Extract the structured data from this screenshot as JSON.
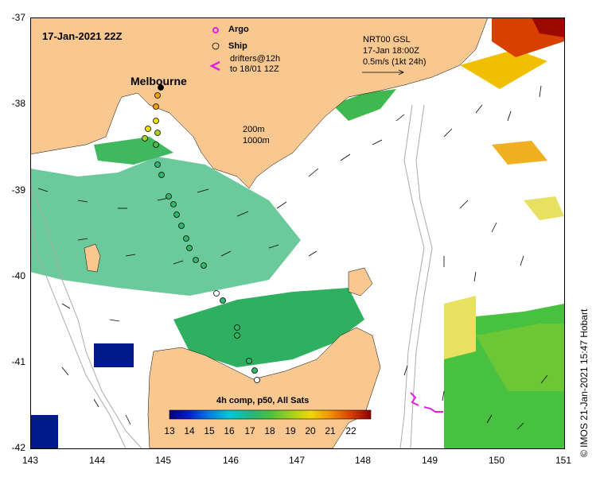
{
  "figure": {
    "date_label": "17-Jan-2021 22Z",
    "credit": "© IMOS 21-Jan-2021 15:47 Hobart"
  },
  "legend": {
    "argo": "Argo",
    "ship": "Ship",
    "drifters_line1": "drifters@12h",
    "drifters_line2": "to 18/01 12Z"
  },
  "current_key": {
    "line1": "NRT00 GSL",
    "line2": "17-Jan 18:00Z",
    "line3": "0.5m/s (1kt 24h)"
  },
  "isobaths": {
    "line1": "200m",
    "line2": "1000m"
  },
  "place_labels": {
    "melbourne": "Melbourne"
  },
  "axes": {
    "y_ticks": [
      "-37",
      "-38",
      "-39",
      "-40",
      "-41",
      "-42"
    ],
    "x_ticks": [
      "143",
      "144",
      "145",
      "146",
      "147",
      "148",
      "149",
      "150",
      "151"
    ]
  },
  "colorbar": {
    "title": "4h comp, p50, All Sats",
    "ticks": [
      "13",
      "14",
      "15",
      "16",
      "17",
      "18",
      "19",
      "20",
      "21",
      "22"
    ],
    "range": [
      13,
      23
    ]
  },
  "colors": {
    "land": "#f9c890",
    "ocean": "#ffffff",
    "sst_17": "#2db86a",
    "sst_18": "#4ec540",
    "sst_warm": "#f0c000",
    "sst_hot": "#9a0a00",
    "cold": "#001a8c",
    "argo": "#e020e0"
  }
}
